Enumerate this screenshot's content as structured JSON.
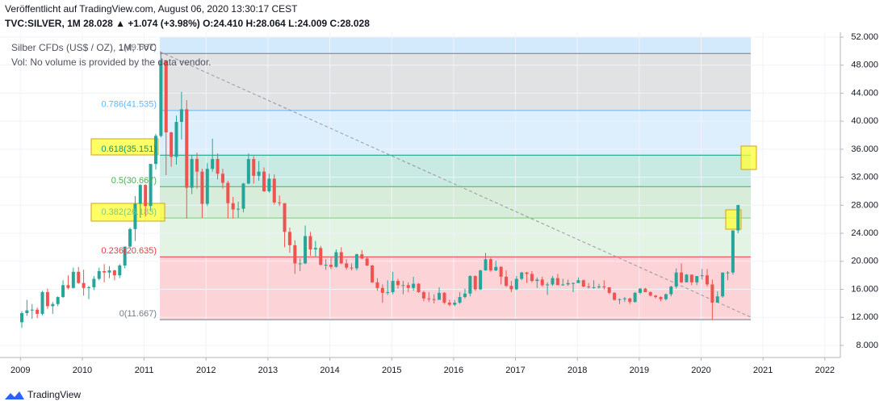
{
  "chart_data": {
    "type": "candlestick",
    "published": "Veröffentlicht auf TradingView.com, August 06, 2020 13:30:17 CEST",
    "quote": "TVC:SILVER, 1M 28.028 ▲ +1.074 (+3.98%) O:24.410 H:28.064 L:24.009 C:28.028",
    "title": "Silber CFDs (US$ / OZ), 1M, TVC",
    "volume_note": "Vol: No volume is provided by the data vendor.",
    "brand": "TradingView",
    "up_color": "#26a69a",
    "down_color": "#ef5350",
    "ylim": [
      6.27,
      52.69
    ],
    "yticks": [
      {
        "value": 8,
        "label": "8.000"
      },
      {
        "value": 12,
        "label": "12.000"
      },
      {
        "value": 16,
        "label": "16.000"
      },
      {
        "value": 20,
        "label": "20.000"
      },
      {
        "value": 24,
        "label": "24.000"
      },
      {
        "value": 28,
        "label": "28.000"
      },
      {
        "value": 32,
        "label": "32.000"
      },
      {
        "value": 36,
        "label": "36.000"
      },
      {
        "value": 40,
        "label": "40.000"
      },
      {
        "value": 44,
        "label": "44.000"
      },
      {
        "value": 48,
        "label": "48.000"
      },
      {
        "value": 52,
        "label": "52.000"
      }
    ],
    "xlim": [
      2008.67,
      2022.25
    ],
    "xticks": [
      2009,
      2010,
      2011,
      2012,
      2013,
      2014,
      2015,
      2016,
      2017,
      2018,
      2019,
      2020,
      2021,
      2022
    ],
    "fib_levels": [
      {
        "label": "1(49.667)",
        "value": 49.667,
        "color": "#787b86"
      },
      {
        "label": "0.786(41.535)",
        "value": 41.535,
        "color": "#64b5f6"
      },
      {
        "label": "0.618(35.151)",
        "value": 35.151,
        "color": "#089981"
      },
      {
        "label": "0.5(30.667)",
        "value": 30.667,
        "color": "#4caf50"
      },
      {
        "label": "0.382(26.183)",
        "value": 26.183,
        "color": "#81c784"
      },
      {
        "label": "0.236(20.635)",
        "value": 20.635,
        "color": "#f23645"
      },
      {
        "label": "0(11.667)",
        "value": 11.667,
        "color": "#787b86"
      }
    ],
    "candles": [
      [
        11.3,
        12.9,
        10.5,
        12.6
      ],
      [
        12.6,
        14.5,
        12.2,
        13.0
      ],
      [
        13.0,
        13.9,
        11.8,
        13.1
      ],
      [
        13.1,
        13.4,
        11.9,
        12.5
      ],
      [
        12.5,
        15.8,
        12.3,
        15.6
      ],
      [
        15.6,
        16.1,
        13.2,
        13.6
      ],
      [
        13.6,
        14.2,
        12.5,
        13.9
      ],
      [
        13.9,
        15.0,
        13.6,
        14.9
      ],
      [
        14.9,
        17.3,
        14.8,
        16.6
      ],
      [
        16.6,
        18.0,
        16.0,
        16.2
      ],
      [
        16.2,
        19.1,
        16.1,
        18.5
      ],
      [
        18.5,
        19.2,
        16.8,
        16.9
      ],
      [
        16.9,
        18.8,
        15.1,
        16.2
      ],
      [
        16.2,
        16.5,
        14.6,
        16.3
      ],
      [
        16.3,
        17.9,
        15.9,
        17.5
      ],
      [
        17.5,
        19.1,
        17.3,
        18.6
      ],
      [
        18.6,
        19.6,
        17.0,
        18.4
      ],
      [
        18.4,
        19.3,
        17.6,
        18.7
      ],
      [
        18.7,
        18.8,
        17.3,
        18.0
      ],
      [
        18.0,
        19.6,
        17.6,
        19.4
      ],
      [
        19.4,
        22.1,
        19.0,
        22.1
      ],
      [
        22.1,
        24.8,
        22.0,
        24.6
      ],
      [
        24.6,
        29.3,
        22.9,
        28.2
      ],
      [
        28.2,
        31.0,
        26.2,
        30.9
      ],
      [
        30.9,
        31.0,
        26.4,
        27.9
      ],
      [
        27.9,
        33.9,
        27.2,
        33.9
      ],
      [
        33.9,
        38.2,
        33.1,
        37.9
      ],
      [
        37.9,
        49.8,
        37.7,
        48.6
      ],
      [
        48.6,
        48.7,
        32.3,
        38.4
      ],
      [
        38.4,
        38.5,
        33.5,
        34.9
      ],
      [
        34.9,
        40.8,
        33.8,
        39.9
      ],
      [
        39.9,
        44.2,
        37.4,
        41.7
      ],
      [
        41.7,
        43.0,
        26.1,
        30.5
      ],
      [
        30.5,
        35.1,
        29.6,
        34.6
      ],
      [
        34.6,
        35.5,
        30.4,
        32.8
      ],
      [
        32.8,
        33.2,
        26.2,
        28.2
      ],
      [
        28.2,
        34.0,
        27.9,
        33.2
      ],
      [
        33.2,
        37.5,
        32.8,
        34.6
      ],
      [
        34.6,
        35.4,
        31.7,
        32.5
      ],
      [
        32.5,
        33.2,
        30.4,
        31.2
      ],
      [
        31.2,
        31.5,
        26.1,
        28.3
      ],
      [
        28.3,
        29.2,
        26.1,
        27.4
      ],
      [
        27.4,
        28.5,
        26.2,
        27.5
      ],
      [
        27.5,
        31.2,
        27.0,
        31.1
      ],
      [
        31.1,
        35.4,
        31.0,
        34.6
      ],
      [
        34.6,
        35.0,
        31.1,
        32.2
      ],
      [
        32.2,
        34.3,
        31.5,
        32.8
      ],
      [
        32.8,
        33.4,
        29.9,
        30.0
      ],
      [
        30.0,
        32.5,
        29.8,
        31.8
      ],
      [
        31.8,
        32.4,
        28.1,
        28.4
      ],
      [
        28.4,
        29.4,
        27.9,
        28.3
      ],
      [
        28.3,
        28.3,
        22.0,
        24.2
      ],
      [
        24.2,
        24.8,
        21.2,
        22.3
      ],
      [
        22.3,
        23.0,
        18.2,
        19.7
      ],
      [
        19.7,
        20.4,
        18.6,
        19.7
      ],
      [
        19.7,
        25.1,
        19.6,
        23.6
      ],
      [
        23.6,
        24.2,
        20.8,
        21.7
      ],
      [
        21.7,
        22.9,
        20.7,
        21.9
      ],
      [
        21.9,
        22.2,
        19.4,
        19.5
      ],
      [
        19.5,
        20.3,
        18.8,
        19.5
      ],
      [
        19.5,
        20.5,
        18.9,
        19.2
      ],
      [
        19.2,
        21.7,
        19.1,
        21.3
      ],
      [
        21.3,
        22.0,
        19.6,
        19.7
      ],
      [
        19.7,
        20.3,
        18.8,
        19.1
      ],
      [
        19.1,
        19.7,
        18.7,
        19.0
      ],
      [
        19.0,
        21.1,
        18.7,
        21.0
      ],
      [
        21.0,
        21.6,
        20.3,
        20.4
      ],
      [
        20.4,
        20.6,
        19.3,
        19.4
      ],
      [
        19.4,
        19.5,
        16.9,
        17.0
      ],
      [
        17.0,
        17.6,
        15.8,
        16.2
      ],
      [
        16.2,
        16.7,
        14.1,
        15.5
      ],
      [
        15.5,
        17.3,
        15.2,
        15.6
      ],
      [
        15.6,
        18.5,
        15.3,
        17.2
      ],
      [
        17.2,
        17.5,
        16.1,
        16.6
      ],
      [
        16.6,
        17.2,
        15.3,
        16.6
      ],
      [
        16.6,
        17.0,
        15.6,
        16.2
      ],
      [
        16.2,
        17.8,
        15.8,
        16.8
      ],
      [
        16.8,
        16.9,
        15.5,
        15.6
      ],
      [
        15.6,
        15.8,
        14.3,
        14.7
      ],
      [
        14.7,
        15.6,
        14.2,
        14.6
      ],
      [
        14.6,
        15.3,
        14.0,
        14.5
      ],
      [
        14.5,
        16.3,
        14.5,
        15.5
      ],
      [
        15.5,
        15.6,
        13.9,
        14.1
      ],
      [
        14.1,
        14.5,
        13.6,
        13.8
      ],
      [
        13.8,
        14.5,
        13.6,
        14.1
      ],
      [
        14.1,
        15.6,
        13.9,
        14.9
      ],
      [
        14.9,
        16.1,
        14.7,
        15.4
      ],
      [
        15.4,
        18.0,
        15.0,
        17.9
      ],
      [
        17.9,
        18.0,
        15.8,
        16.0
      ],
      [
        16.0,
        18.8,
        15.9,
        18.7
      ],
      [
        18.7,
        21.2,
        18.7,
        20.3
      ],
      [
        20.3,
        20.5,
        18.5,
        18.7
      ],
      [
        18.7,
        20.1,
        18.6,
        19.2
      ],
      [
        19.2,
        19.3,
        16.7,
        17.8
      ],
      [
        17.8,
        18.7,
        16.3,
        16.5
      ],
      [
        16.5,
        17.2,
        15.6,
        16.0
      ],
      [
        16.0,
        17.9,
        15.9,
        17.5
      ],
      [
        17.5,
        18.5,
        17.3,
        18.4
      ],
      [
        18.4,
        18.5,
        16.9,
        18.2
      ],
      [
        18.2,
        18.6,
        17.0,
        17.2
      ],
      [
        17.2,
        17.7,
        16.2,
        17.4
      ],
      [
        17.4,
        17.8,
        16.4,
        16.6
      ],
      [
        16.6,
        17.0,
        15.2,
        16.7
      ],
      [
        16.7,
        17.9,
        16.5,
        17.6
      ],
      [
        17.6,
        18.2,
        16.6,
        16.6
      ],
      [
        16.6,
        17.5,
        16.5,
        16.7
      ],
      [
        16.7,
        17.4,
        16.5,
        16.9
      ],
      [
        16.9,
        17.0,
        15.6,
        16.9
      ],
      [
        16.9,
        17.7,
        16.9,
        17.3
      ],
      [
        17.3,
        17.4,
        16.3,
        16.4
      ],
      [
        16.4,
        16.9,
        16.1,
        16.3
      ],
      [
        16.3,
        17.3,
        16.1,
        16.3
      ],
      [
        16.3,
        16.8,
        16.1,
        16.4
      ],
      [
        16.4,
        17.3,
        16.0,
        16.3
      ],
      [
        16.3,
        16.3,
        15.3,
        15.5
      ],
      [
        15.5,
        15.6,
        14.4,
        14.5
      ],
      [
        14.5,
        14.7,
        13.9,
        14.6
      ],
      [
        14.6,
        14.9,
        14.2,
        14.7
      ],
      [
        14.7,
        14.8,
        13.9,
        14.2
      ],
      [
        14.2,
        15.6,
        14.1,
        15.5
      ],
      [
        15.5,
        16.2,
        15.3,
        16.1
      ],
      [
        16.1,
        16.2,
        15.6,
        15.6
      ],
      [
        15.6,
        15.7,
        15.0,
        15.1
      ],
      [
        15.1,
        15.2,
        14.7,
        14.9
      ],
      [
        14.9,
        15.0,
        14.3,
        14.6
      ],
      [
        14.6,
        15.4,
        14.4,
        15.3
      ],
      [
        15.3,
        16.5,
        15.0,
        16.4
      ],
      [
        16.4,
        19.0,
        16.1,
        18.4
      ],
      [
        18.4,
        19.7,
        16.9,
        17.0
      ],
      [
        17.0,
        18.2,
        17.0,
        18.1
      ],
      [
        18.1,
        18.1,
        16.6,
        17.0
      ],
      [
        17.0,
        17.9,
        16.6,
        17.9
      ],
      [
        17.9,
        18.9,
        17.4,
        18.0
      ],
      [
        18.0,
        18.9,
        16.4,
        16.7
      ],
      [
        16.7,
        17.4,
        11.64,
        14.1
      ],
      [
        14.1,
        15.7,
        14.1,
        15.0
      ],
      [
        15.0,
        18.4,
        14.8,
        18.4
      ],
      [
        18.4,
        18.6,
        17.3,
        18.4
      ],
      [
        18.4,
        24.4,
        18.1,
        24.41
      ],
      [
        24.41,
        28.064,
        24.009,
        28.028
      ]
    ]
  }
}
